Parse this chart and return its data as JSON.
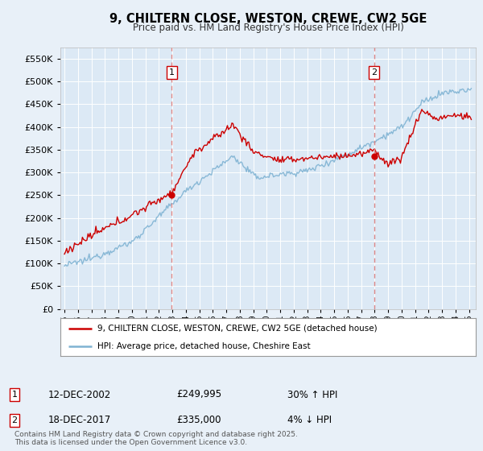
{
  "title": "9, CHILTERN CLOSE, WESTON, CREWE, CW2 5GE",
  "subtitle": "Price paid vs. HM Land Registry's House Price Index (HPI)",
  "background_color": "#e8f0f8",
  "plot_bg_color": "#dce9f5",
  "red_line_label": "9, CHILTERN CLOSE, WESTON, CREWE, CW2 5GE (detached house)",
  "blue_line_label": "HPI: Average price, detached house, Cheshire East",
  "sale1_date": "12-DEC-2002",
  "sale1_price": "£249,995",
  "sale1_note": "30% ↑ HPI",
  "sale2_date": "18-DEC-2017",
  "sale2_price": "£335,000",
  "sale2_note": "4% ↓ HPI",
  "footer": "Contains HM Land Registry data © Crown copyright and database right 2025.\nThis data is licensed under the Open Government Licence v3.0.",
  "ylim": [
    0,
    575000
  ],
  "yticks": [
    0,
    50000,
    100000,
    150000,
    200000,
    250000,
    300000,
    350000,
    400000,
    450000,
    500000,
    550000
  ],
  "sale1_x": 2002.958,
  "sale1_y": 249995,
  "sale2_x": 2017.958,
  "sale2_y": 335000,
  "red_color": "#cc0000",
  "blue_color": "#7fb3d3",
  "vline_color": "#dd8888",
  "marker_color": "#cc0000",
  "xmin": 1994.7,
  "xmax": 2025.5
}
